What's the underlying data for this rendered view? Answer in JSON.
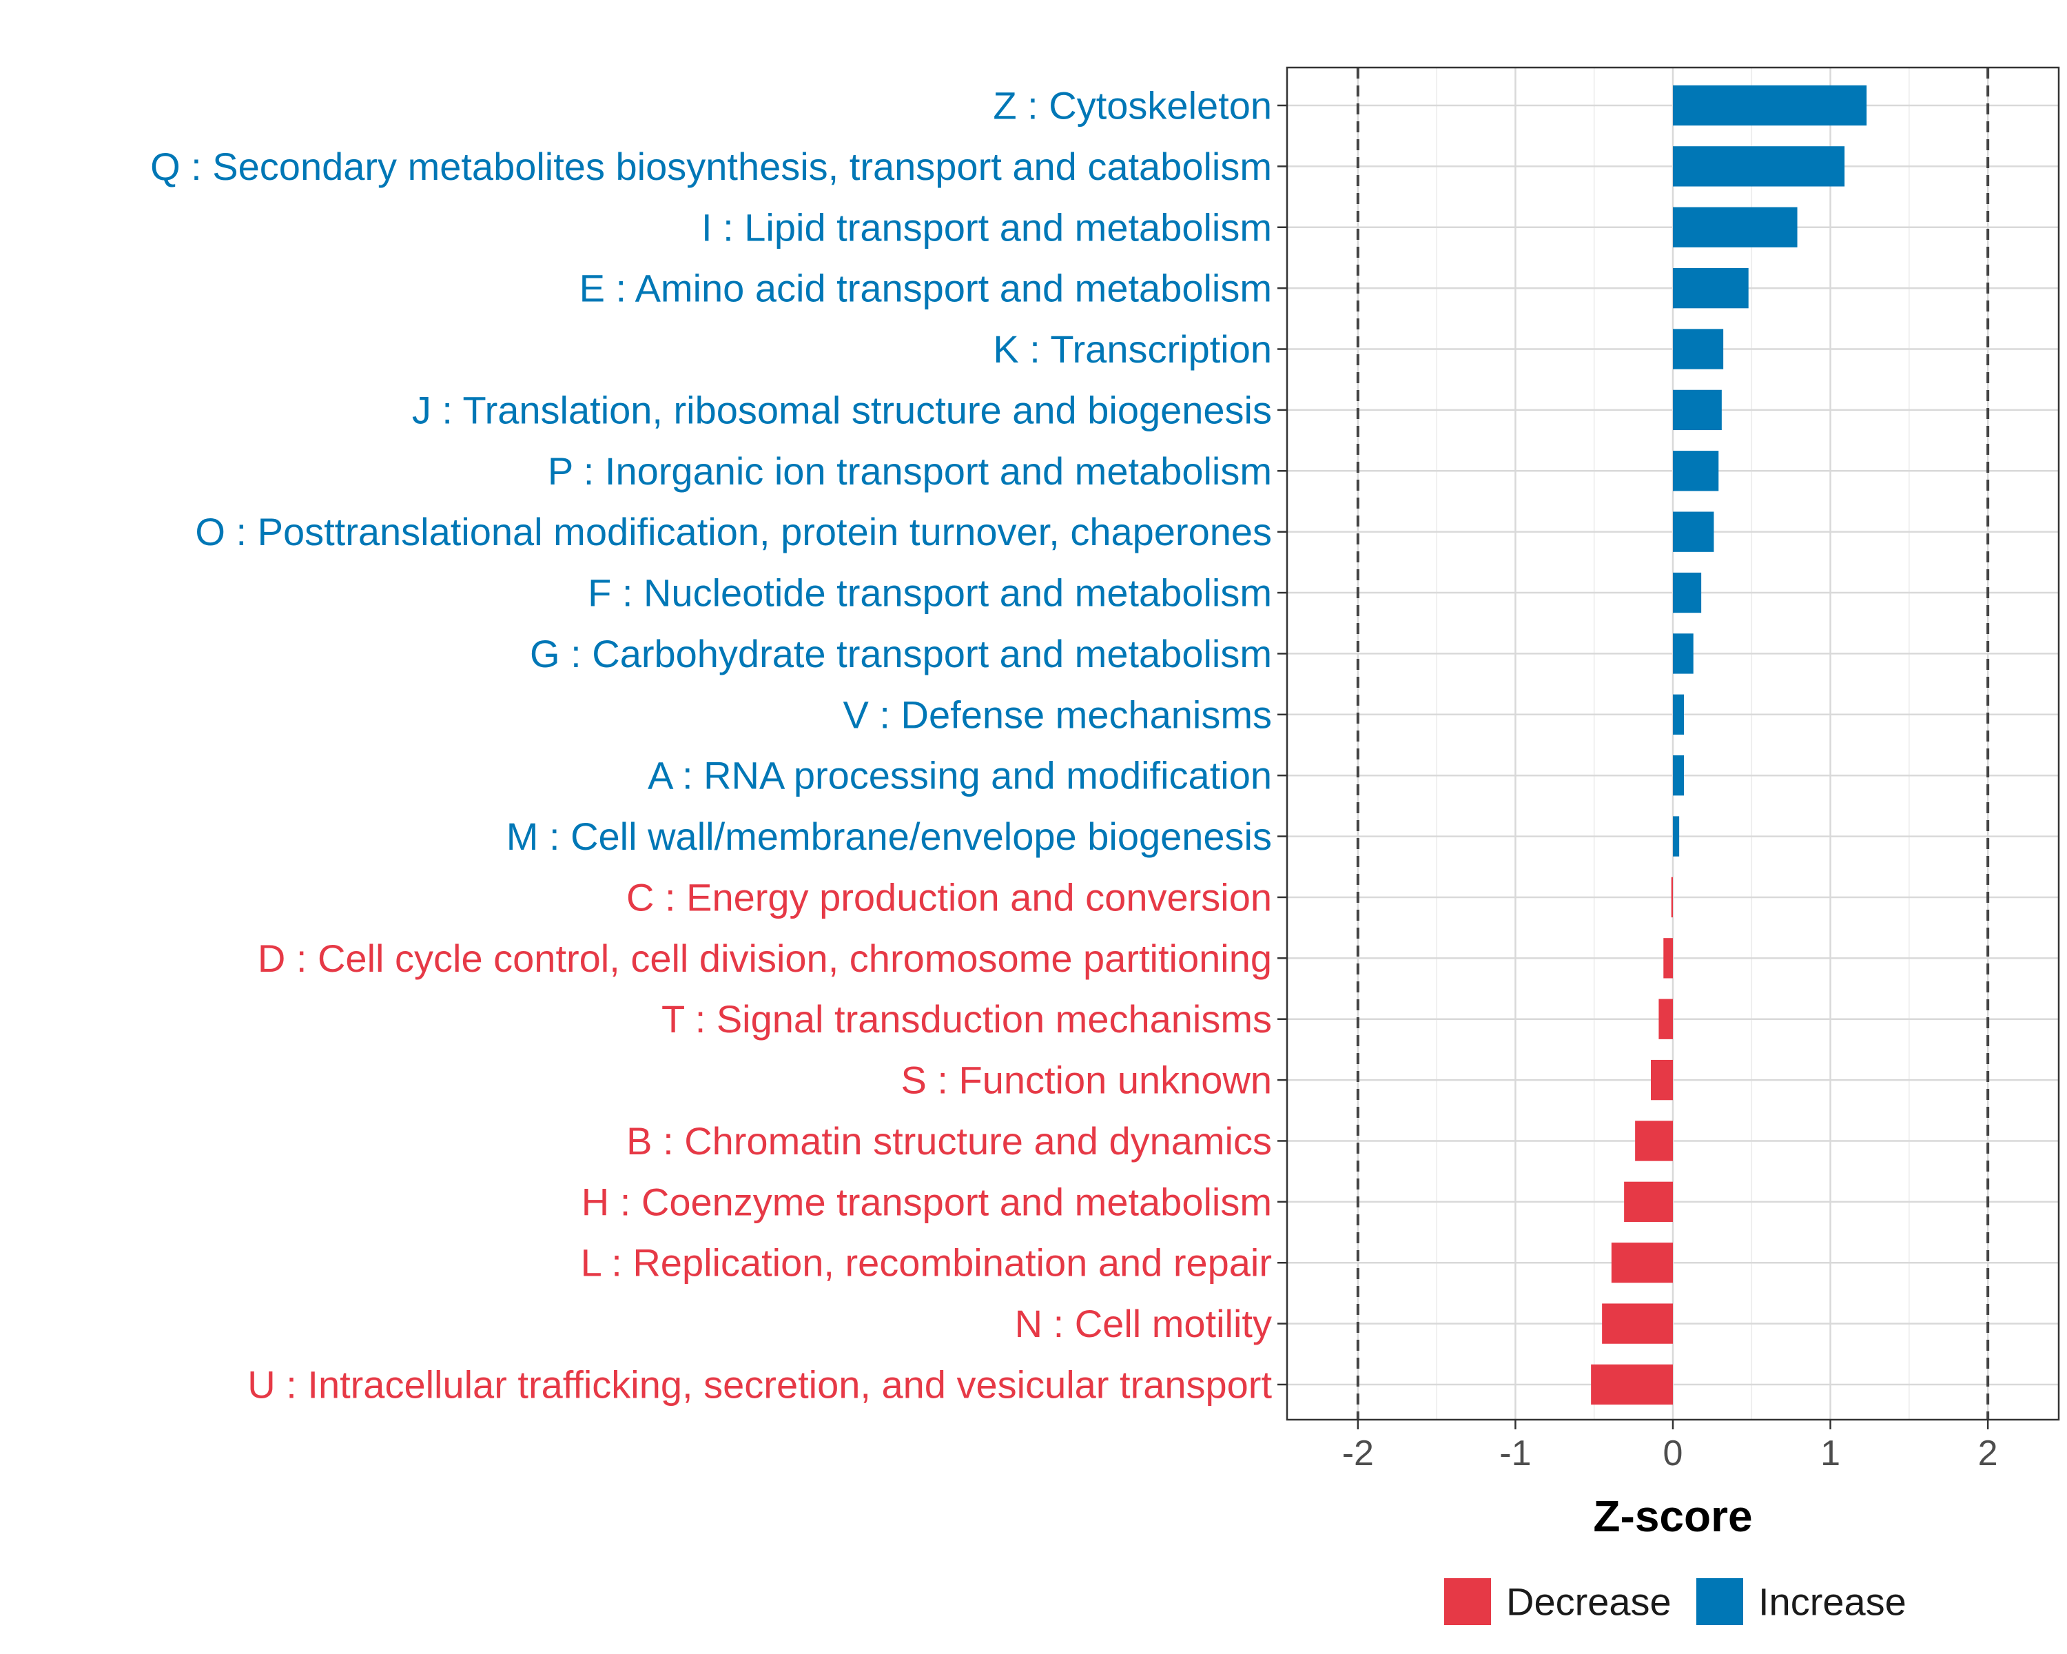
{
  "chart_data": {
    "type": "bar",
    "orientation": "horizontal",
    "xlabel": "Z-score",
    "xlim": [
      -2.45,
      2.45
    ],
    "xticks": [
      -2,
      -1,
      0,
      1,
      2
    ],
    "xtick_labels": [
      "-2",
      "-1",
      "0",
      "1",
      "2"
    ],
    "reference_lines": [
      -2,
      2
    ],
    "grid": true,
    "legend_position": "bottom",
    "colors": {
      "Decrease": "#e63946",
      "Increase": "#0077b6"
    },
    "legend": [
      {
        "label": "Decrease",
        "color": "#e63946"
      },
      {
        "label": "Increase",
        "color": "#0077b6"
      }
    ],
    "categories": [
      "Z : Cytoskeleton",
      "Q : Secondary metabolites biosynthesis, transport and catabolism",
      "I : Lipid transport and metabolism",
      "E : Amino acid transport and metabolism",
      "K : Transcription",
      "J : Translation, ribosomal structure and biogenesis",
      "P : Inorganic ion transport and metabolism",
      "O : Posttranslational modification, protein turnover, chaperones",
      "F : Nucleotide transport and metabolism",
      "G : Carbohydrate transport and metabolism",
      "V : Defense mechanisms",
      "A : RNA processing and modification",
      "M : Cell wall/membrane/envelope biogenesis",
      "C : Energy production and conversion",
      "D : Cell cycle control, cell division, chromosome partitioning",
      "T : Signal transduction mechanisms",
      "S : Function unknown",
      "B : Chromatin structure and dynamics",
      "H : Coenzyme transport and metabolism",
      "L : Replication, recombination and repair",
      "N : Cell motility",
      "U : Intracellular trafficking, secretion, and vesicular transport"
    ],
    "values": [
      1.23,
      1.09,
      0.79,
      0.48,
      0.32,
      0.31,
      0.29,
      0.26,
      0.18,
      0.13,
      0.07,
      0.07,
      0.04,
      -0.01,
      -0.06,
      -0.09,
      -0.14,
      -0.24,
      -0.31,
      -0.39,
      -0.45,
      -0.52
    ],
    "groups": [
      "Increase",
      "Increase",
      "Increase",
      "Increase",
      "Increase",
      "Increase",
      "Increase",
      "Increase",
      "Increase",
      "Increase",
      "Increase",
      "Increase",
      "Increase",
      "Decrease",
      "Decrease",
      "Decrease",
      "Decrease",
      "Decrease",
      "Decrease",
      "Decrease",
      "Decrease",
      "Decrease"
    ]
  }
}
